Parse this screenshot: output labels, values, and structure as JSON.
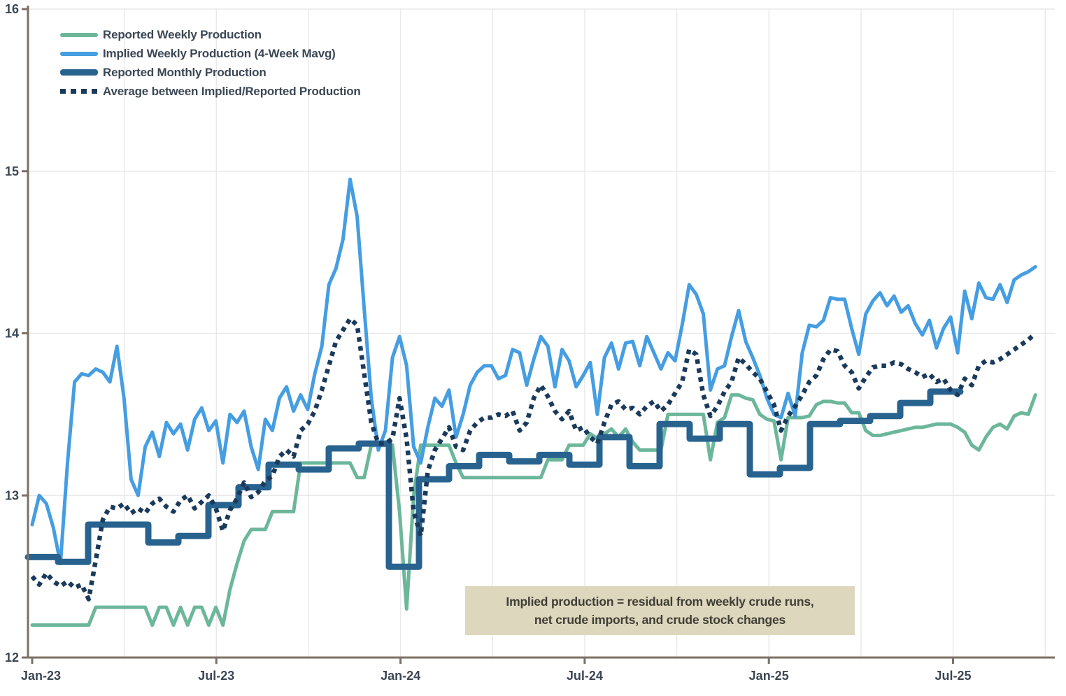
{
  "chart_data": {
    "type": "line",
    "title": "",
    "xlabel": "",
    "ylabel": "",
    "ylim": [
      12,
      16
    ],
    "y_ticks": [
      "12",
      "13",
      "14",
      "15",
      "16"
    ],
    "x_tick_labels": [
      "Jan-23",
      "Jul-23",
      "Jan-24",
      "Jul-24",
      "Jan-25",
      "Jul-25"
    ],
    "grid": "quarterly vertical and unit horizontal, light gray",
    "legend_position": "top-left inside plot",
    "annotation": {
      "line1": "Implied production = residual from weekly crude runs,",
      "line2": "net crude imports, and crude stock changes",
      "background": "#ddd7be"
    },
    "axis_color": "#7d7064",
    "grid_color": "#e9e9e9",
    "tick_label_color": "#3b4754",
    "series": [
      {
        "name": "Reported Weekly Production",
        "color": "#6cb79a",
        "style": "solid weekly line",
        "cadence": "weekly, Jan-2023 through Sep-2025",
        "values": [
          12.2,
          12.2,
          12.2,
          12.2,
          12.2,
          12.2,
          12.2,
          12.2,
          12.2,
          12.31,
          12.31,
          12.31,
          12.31,
          12.31,
          12.31,
          12.31,
          12.31,
          12.2,
          12.31,
          12.31,
          12.2,
          12.31,
          12.2,
          12.31,
          12.31,
          12.2,
          12.31,
          12.2,
          12.42,
          12.58,
          12.72,
          12.79,
          12.79,
          12.79,
          12.9,
          12.9,
          12.9,
          12.9,
          13.2,
          13.2,
          13.2,
          13.2,
          13.2,
          13.2,
          13.2,
          13.2,
          13.11,
          13.11,
          13.31,
          13.31,
          13.31,
          13.31,
          12.9,
          12.3,
          13.0,
          13.31,
          13.31,
          13.31,
          13.31,
          13.31,
          13.2,
          13.11,
          13.11,
          13.11,
          13.11,
          13.11,
          13.11,
          13.11,
          13.11,
          13.11,
          13.11,
          13.11,
          13.11,
          13.22,
          13.22,
          13.22,
          13.31,
          13.31,
          13.31,
          13.38,
          13.35,
          13.38,
          13.41,
          13.36,
          13.41,
          13.33,
          13.28,
          13.28,
          13.28,
          13.28,
          13.5,
          13.5,
          13.5,
          13.5,
          13.5,
          13.5,
          13.22,
          13.45,
          13.48,
          13.62,
          13.62,
          13.6,
          13.59,
          13.5,
          13.47,
          13.46,
          13.22,
          13.48,
          13.48,
          13.48,
          13.49,
          13.56,
          13.58,
          13.58,
          13.57,
          13.57,
          13.51,
          13.51,
          13.4,
          13.37,
          13.37,
          13.38,
          13.39,
          13.4,
          13.41,
          13.42,
          13.42,
          13.43,
          13.44,
          13.44,
          13.44,
          13.42,
          13.39,
          13.31,
          13.28,
          13.36,
          13.42,
          13.44,
          13.41,
          13.49,
          13.51,
          13.5,
          13.62
        ]
      },
      {
        "name": "Implied Weekly Production (4-Week Mavg)",
        "color": "#459de2",
        "style": "solid weekly line",
        "cadence": "weekly, Jan-2023 through Sep-2025",
        "values": [
          12.82,
          13.0,
          12.95,
          12.8,
          12.58,
          13.2,
          13.7,
          13.75,
          13.74,
          13.78,
          13.76,
          13.7,
          13.92,
          13.6,
          13.1,
          13.0,
          13.3,
          13.39,
          13.24,
          13.45,
          13.38,
          13.44,
          13.28,
          13.47,
          13.54,
          13.4,
          13.46,
          13.2,
          13.5,
          13.45,
          13.52,
          13.3,
          13.16,
          13.47,
          13.4,
          13.6,
          13.67,
          13.52,
          13.62,
          13.53,
          13.75,
          13.92,
          14.3,
          14.4,
          14.58,
          14.95,
          14.72,
          14.15,
          13.6,
          13.28,
          13.4,
          13.85,
          13.98,
          13.8,
          13.3,
          13.2,
          13.42,
          13.6,
          13.55,
          13.65,
          13.36,
          13.5,
          13.68,
          13.76,
          13.8,
          13.8,
          13.72,
          13.74,
          13.9,
          13.88,
          13.68,
          13.84,
          13.98,
          13.92,
          13.67,
          13.9,
          13.83,
          13.67,
          13.74,
          13.82,
          13.5,
          13.85,
          13.94,
          13.78,
          13.94,
          13.95,
          13.8,
          13.98,
          13.88,
          13.78,
          13.88,
          13.83,
          14.05,
          14.3,
          14.24,
          14.12,
          13.65,
          13.78,
          13.8,
          13.98,
          14.14,
          13.95,
          13.85,
          13.74,
          13.6,
          13.5,
          13.48,
          13.63,
          13.49,
          13.88,
          14.05,
          14.04,
          14.08,
          14.22,
          14.21,
          14.21,
          14.03,
          13.87,
          14.12,
          14.2,
          14.25,
          14.17,
          14.23,
          14.13,
          14.17,
          14.06,
          13.99,
          14.08,
          13.91,
          14.03,
          14.1,
          13.88,
          14.26,
          14.09,
          14.31,
          14.22,
          14.21,
          14.3,
          14.19,
          14.33,
          14.36,
          14.38,
          14.41
        ]
      },
      {
        "name": "Reported Monthly Production",
        "color": "#28638f",
        "style": "thick monthly step line",
        "cadence": "monthly, Jan-2023 through Jul-2025",
        "months": [
          "Jan-23",
          "Feb-23",
          "Mar-23",
          "Apr-23",
          "May-23",
          "Jun-23",
          "Jul-23",
          "Aug-23",
          "Sep-23",
          "Oct-23",
          "Nov-23",
          "Dec-23",
          "Jan-24",
          "Feb-24",
          "Mar-24",
          "Apr-24",
          "May-24",
          "Jun-24",
          "Jul-24",
          "Aug-24",
          "Sep-24",
          "Oct-24",
          "Nov-24",
          "Dec-24",
          "Jan-25",
          "Feb-25",
          "Mar-25",
          "Apr-25",
          "May-25",
          "Jun-25",
          "Jul-25"
        ],
        "values": [
          12.62,
          12.59,
          12.82,
          12.82,
          12.71,
          12.75,
          12.94,
          13.05,
          13.19,
          13.16,
          13.29,
          13.32,
          12.56,
          13.1,
          13.18,
          13.25,
          13.21,
          13.25,
          13.19,
          13.36,
          13.18,
          13.44,
          13.35,
          13.44,
          13.13,
          13.17,
          13.44,
          13.46,
          13.49,
          13.57,
          13.64
        ]
      },
      {
        "name": "Average between Implied/Reported Production",
        "color": "#1a3a5c",
        "style": "dotted weekly line",
        "cadence": "weekly, Jan-2023 through Sep-2025",
        "values": [
          12.5,
          12.45,
          12.52,
          12.47,
          12.44,
          12.47,
          12.43,
          12.45,
          12.36,
          12.6,
          12.85,
          12.93,
          12.92,
          12.95,
          12.89,
          12.92,
          12.89,
          12.95,
          12.98,
          12.93,
          12.9,
          12.97,
          13.0,
          12.92,
          12.96,
          13.0,
          12.92,
          12.78,
          12.91,
          12.98,
          13.08,
          12.99,
          13.02,
          13.09,
          13.12,
          13.24,
          13.28,
          13.24,
          13.4,
          13.44,
          13.52,
          13.65,
          13.8,
          13.95,
          14.02,
          14.09,
          14.05,
          13.75,
          13.45,
          13.32,
          13.32,
          13.35,
          13.6,
          13.35,
          12.9,
          12.75,
          13.15,
          13.28,
          13.35,
          13.42,
          13.3,
          13.28,
          13.4,
          13.45,
          13.48,
          13.48,
          13.5,
          13.49,
          13.52,
          13.4,
          13.45,
          13.6,
          13.68,
          13.61,
          13.52,
          13.47,
          13.52,
          13.4,
          13.42,
          13.36,
          13.32,
          13.45,
          13.56,
          13.58,
          13.53,
          13.54,
          13.5,
          13.55,
          13.58,
          13.52,
          13.56,
          13.63,
          13.7,
          13.9,
          13.87,
          13.62,
          13.49,
          13.55,
          13.64,
          13.7,
          13.85,
          13.81,
          13.76,
          13.72,
          13.64,
          13.56,
          13.4,
          13.49,
          13.55,
          13.62,
          13.7,
          13.74,
          13.84,
          13.9,
          13.89,
          13.8,
          13.76,
          13.66,
          13.73,
          13.79,
          13.8,
          13.8,
          13.82,
          13.81,
          13.78,
          13.76,
          13.73,
          13.75,
          13.7,
          13.72,
          13.65,
          13.62,
          13.72,
          13.68,
          13.8,
          13.83,
          13.82,
          13.84,
          13.87,
          13.9,
          13.93,
          13.96,
          14.0
        ]
      }
    ]
  }
}
